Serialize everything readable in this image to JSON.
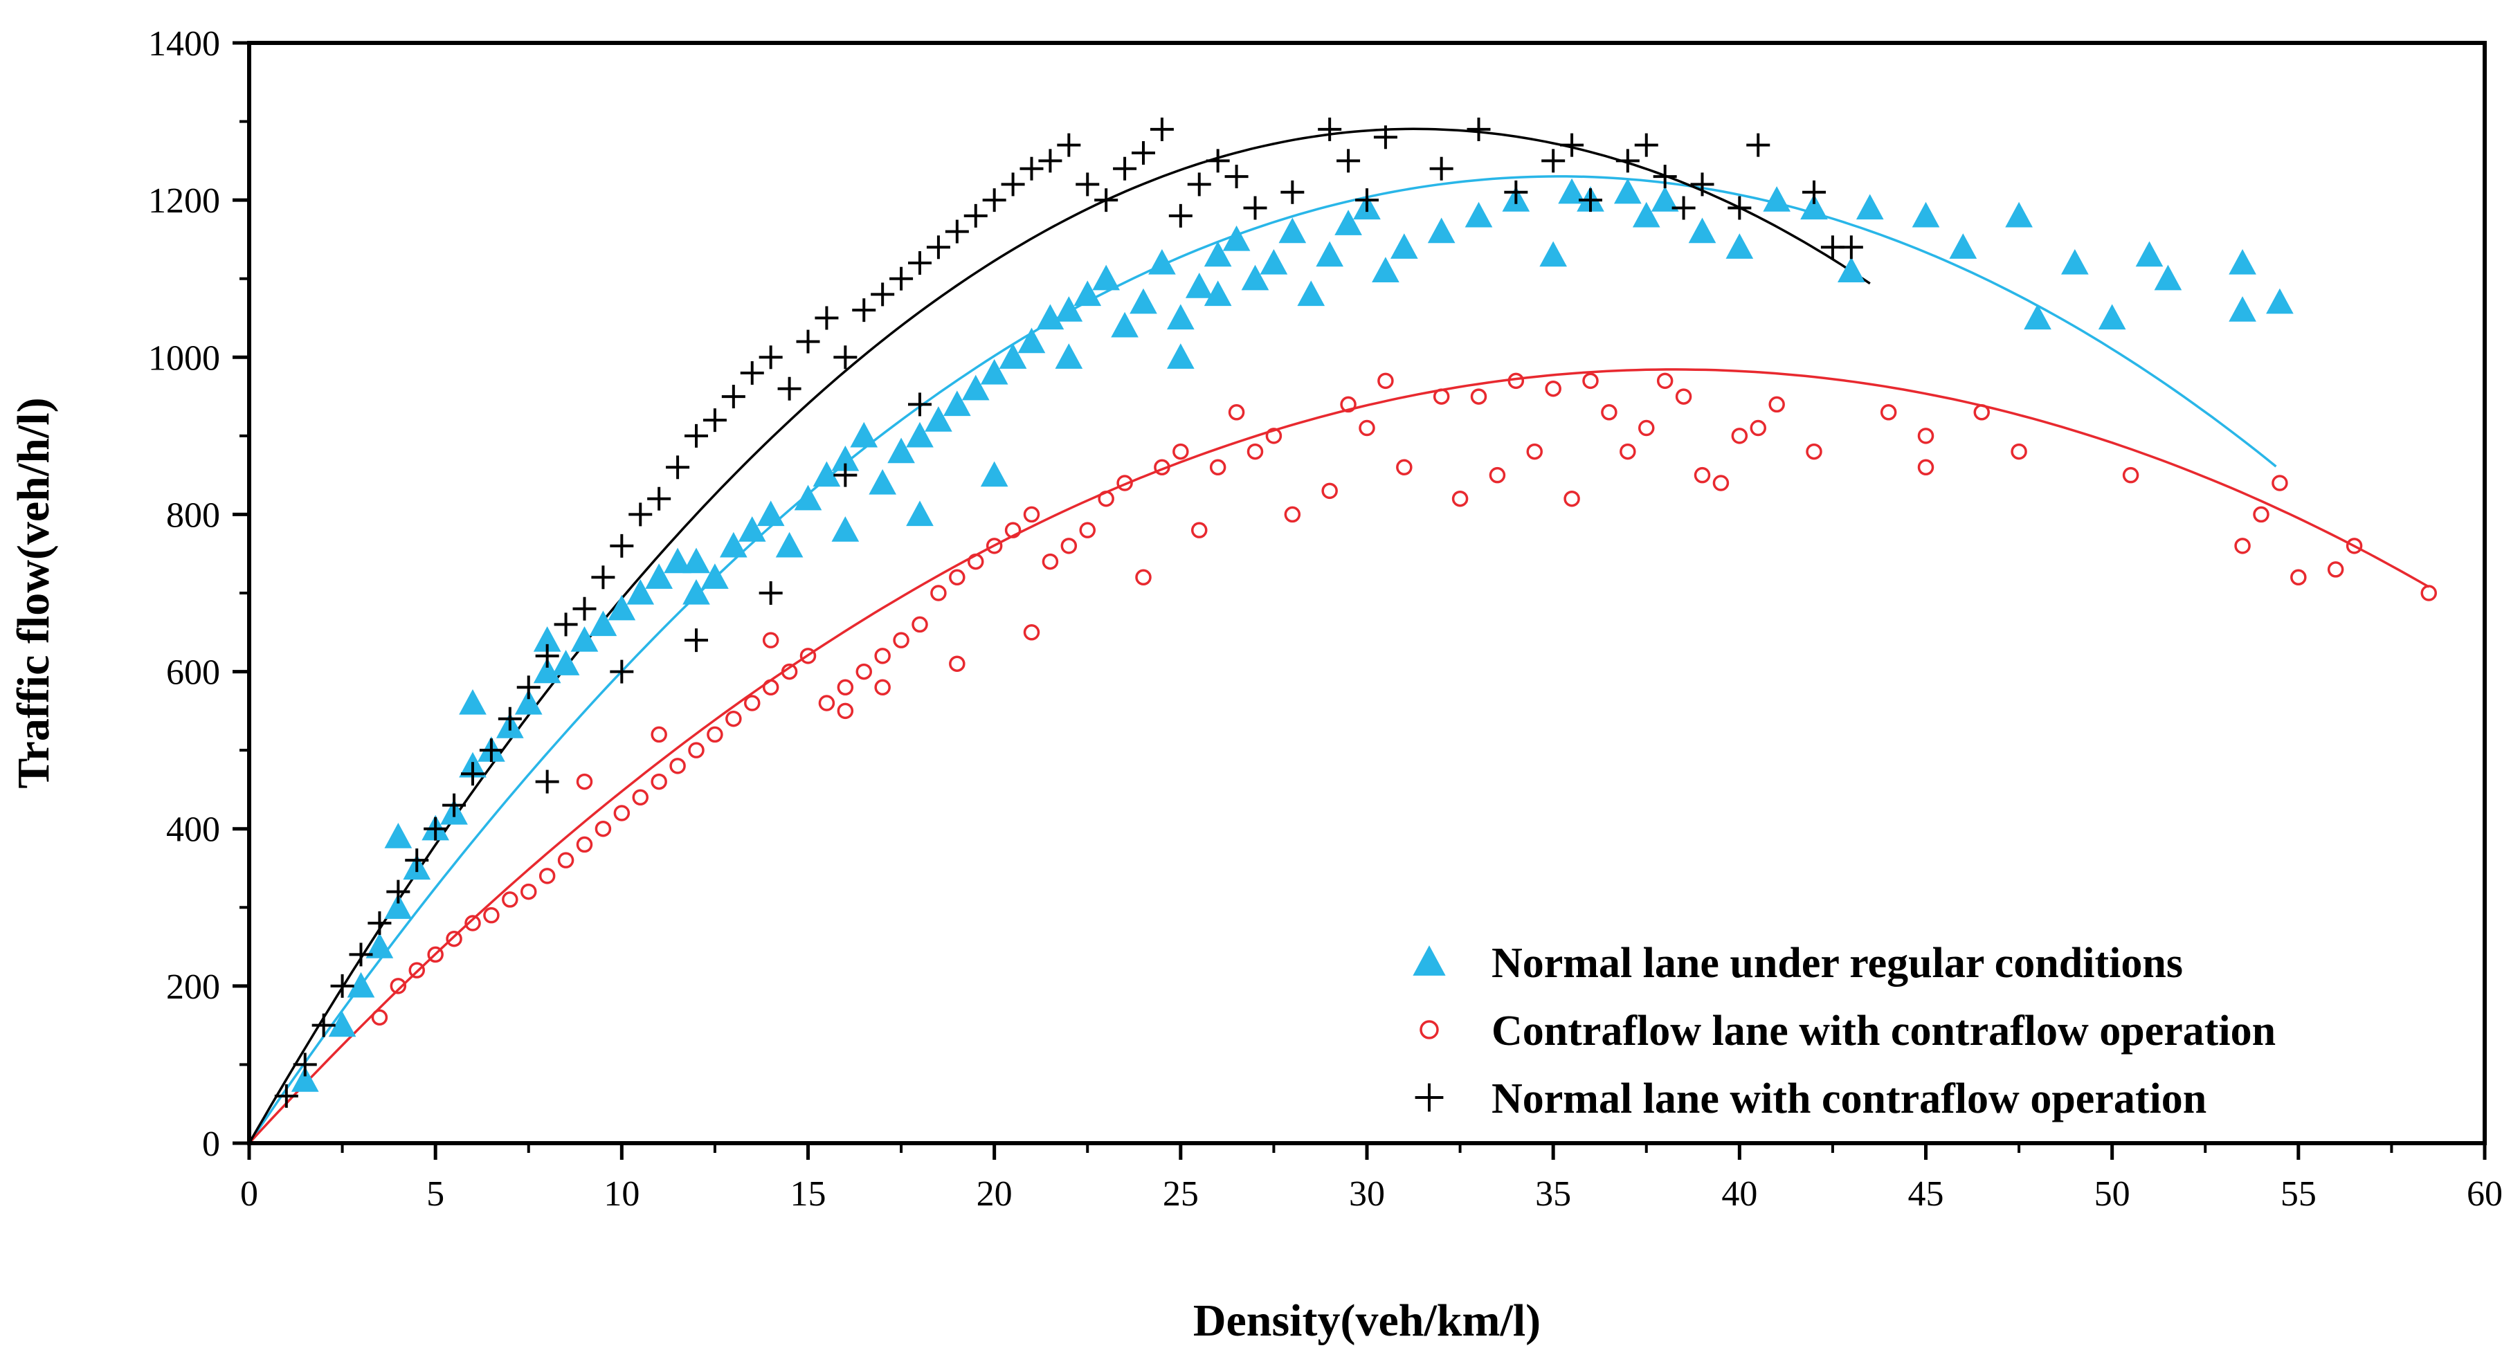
{
  "chart_data": {
    "type": "scatter",
    "title": "",
    "xlabel": "Density(veh/km/l)",
    "ylabel": "Traffic flow(veh/h/l)",
    "xlim": [
      0,
      60
    ],
    "ylim": [
      0,
      1400
    ],
    "xticks": [
      0,
      5,
      10,
      15,
      20,
      25,
      30,
      35,
      40,
      45,
      50,
      55,
      60
    ],
    "yticks": [
      0,
      200,
      400,
      600,
      800,
      1000,
      1200,
      1400
    ],
    "legend_position": "bottom-right",
    "series": [
      {
        "name": "Normal lane under regular conditions",
        "marker": "triangle",
        "color": "#29b6e8",
        "fit": {
          "type": "quadratic",
          "a": -0.9958,
          "b": 70.0,
          "c": 0,
          "x_range": [
            0,
            54.4
          ]
        },
        "points": [
          [
            1.5,
            80
          ],
          [
            2.5,
            150
          ],
          [
            3,
            200
          ],
          [
            3.5,
            250
          ],
          [
            4,
            300
          ],
          [
            4.5,
            350
          ],
          [
            5,
            400
          ],
          [
            5.5,
            420
          ],
          [
            6,
            480
          ],
          [
            6.5,
            500
          ],
          [
            7,
            530
          ],
          [
            7.5,
            560
          ],
          [
            8,
            600
          ],
          [
            8.5,
            610
          ],
          [
            9,
            640
          ],
          [
            9.5,
            660
          ],
          [
            10,
            680
          ],
          [
            10.5,
            700
          ],
          [
            11,
            720
          ],
          [
            11.5,
            740
          ],
          [
            12,
            700
          ],
          [
            12.5,
            720
          ],
          [
            13,
            760
          ],
          [
            13.5,
            780
          ],
          [
            14,
            800
          ],
          [
            14.5,
            760
          ],
          [
            15,
            820
          ],
          [
            15.5,
            850
          ],
          [
            16,
            870
          ],
          [
            16.5,
            900
          ],
          [
            17,
            840
          ],
          [
            17.5,
            880
          ],
          [
            18,
            900
          ],
          [
            18.5,
            920
          ],
          [
            19,
            940
          ],
          [
            19.5,
            960
          ],
          [
            20,
            980
          ],
          [
            20.5,
            1000
          ],
          [
            21,
            1020
          ],
          [
            21.5,
            1050
          ],
          [
            22,
            1060
          ],
          [
            22.5,
            1080
          ],
          [
            23,
            1100
          ],
          [
            23.5,
            1040
          ],
          [
            24,
            1070
          ],
          [
            24.5,
            1120
          ],
          [
            25,
            1050
          ],
          [
            25.5,
            1090
          ],
          [
            26,
            1130
          ],
          [
            26.5,
            1150
          ],
          [
            27,
            1100
          ],
          [
            27.5,
            1120
          ],
          [
            28,
            1160
          ],
          [
            28.5,
            1080
          ],
          [
            29,
            1130
          ],
          [
            29.5,
            1170
          ],
          [
            30,
            1190
          ],
          [
            30.5,
            1110
          ],
          [
            31,
            1140
          ],
          [
            32,
            1160
          ],
          [
            33,
            1180
          ],
          [
            34,
            1200
          ],
          [
            35,
            1130
          ],
          [
            35.5,
            1210
          ],
          [
            36,
            1200
          ],
          [
            37,
            1210
          ],
          [
            37.5,
            1180
          ],
          [
            38,
            1200
          ],
          [
            39,
            1160
          ],
          [
            40,
            1140
          ],
          [
            41,
            1200
          ],
          [
            42,
            1190
          ],
          [
            43,
            1110
          ],
          [
            43.5,
            1190
          ],
          [
            45,
            1180
          ],
          [
            46,
            1140
          ],
          [
            47.5,
            1180
          ],
          [
            48,
            1050
          ],
          [
            49,
            1120
          ],
          [
            50,
            1050
          ],
          [
            51,
            1130
          ],
          [
            51.5,
            1100
          ],
          [
            53.5,
            1120
          ],
          [
            53.5,
            1060
          ],
          [
            54.5,
            1070
          ],
          [
            4,
            390
          ],
          [
            6,
            560
          ],
          [
            8,
            640
          ],
          [
            12,
            740
          ],
          [
            16,
            780
          ],
          [
            18,
            800
          ],
          [
            20,
            850
          ],
          [
            22,
            1000
          ],
          [
            25,
            1000
          ],
          [
            26,
            1080
          ]
        ]
      },
      {
        "name": "Contraflow lane with contraflow operation",
        "marker": "circle",
        "color": "#e8292f",
        "fit": {
          "type": "quadratic",
          "a": -0.6735,
          "b": 51.5,
          "c": 0,
          "x_range": [
            0,
            58.5
          ]
        },
        "points": [
          [
            3.5,
            160
          ],
          [
            4,
            200
          ],
          [
            4.5,
            220
          ],
          [
            5,
            240
          ],
          [
            5.5,
            260
          ],
          [
            6,
            280
          ],
          [
            6.5,
            290
          ],
          [
            7,
            310
          ],
          [
            7.5,
            320
          ],
          [
            8,
            340
          ],
          [
            8.5,
            360
          ],
          [
            9,
            380
          ],
          [
            9.5,
            400
          ],
          [
            10,
            420
          ],
          [
            10.5,
            440
          ],
          [
            11,
            460
          ],
          [
            11.5,
            480
          ],
          [
            12,
            500
          ],
          [
            12.5,
            520
          ],
          [
            13,
            540
          ],
          [
            13.5,
            560
          ],
          [
            14,
            580
          ],
          [
            14.5,
            600
          ],
          [
            15,
            620
          ],
          [
            15.5,
            560
          ],
          [
            16,
            580
          ],
          [
            16.5,
            600
          ],
          [
            17,
            620
          ],
          [
            17.5,
            640
          ],
          [
            18,
            660
          ],
          [
            18.5,
            700
          ],
          [
            19,
            720
          ],
          [
            19.5,
            740
          ],
          [
            20,
            760
          ],
          [
            20.5,
            780
          ],
          [
            21,
            800
          ],
          [
            21.5,
            740
          ],
          [
            22,
            760
          ],
          [
            22.5,
            780
          ],
          [
            23,
            820
          ],
          [
            23.5,
            840
          ],
          [
            24,
            720
          ],
          [
            24.5,
            860
          ],
          [
            25,
            880
          ],
          [
            25.5,
            780
          ],
          [
            26,
            860
          ],
          [
            26.5,
            930
          ],
          [
            27,
            880
          ],
          [
            27.5,
            900
          ],
          [
            28,
            800
          ],
          [
            29,
            830
          ],
          [
            29.5,
            940
          ],
          [
            30,
            910
          ],
          [
            30.5,
            970
          ],
          [
            31,
            860
          ],
          [
            32,
            950
          ],
          [
            32.5,
            820
          ],
          [
            33,
            950
          ],
          [
            33.5,
            850
          ],
          [
            34,
            970
          ],
          [
            34.5,
            880
          ],
          [
            35,
            960
          ],
          [
            35.5,
            820
          ],
          [
            36,
            970
          ],
          [
            36.5,
            930
          ],
          [
            37,
            880
          ],
          [
            37.5,
            910
          ],
          [
            38,
            970
          ],
          [
            38.5,
            950
          ],
          [
            39,
            850
          ],
          [
            39.5,
            840
          ],
          [
            40,
            900
          ],
          [
            40.5,
            910
          ],
          [
            41,
            940
          ],
          [
            42,
            880
          ],
          [
            44,
            930
          ],
          [
            45,
            900
          ],
          [
            45,
            860
          ],
          [
            46.5,
            930
          ],
          [
            47.5,
            880
          ],
          [
            50.5,
            850
          ],
          [
            53.5,
            760
          ],
          [
            54,
            800
          ],
          [
            54.5,
            840
          ],
          [
            55,
            720
          ],
          [
            56,
            730
          ],
          [
            56.5,
            760
          ],
          [
            58.5,
            700
          ],
          [
            9,
            460
          ],
          [
            11,
            520
          ],
          [
            14,
            640
          ],
          [
            17,
            580
          ],
          [
            19,
            610
          ],
          [
            21,
            650
          ],
          [
            16,
            550
          ]
        ]
      },
      {
        "name": "Normal lane with contraflow operation",
        "marker": "plus",
        "color": "#000000",
        "fit": {
          "type": "quadratic",
          "a": -1.3185,
          "b": 82.5,
          "c": 0,
          "x_range": [
            0,
            43.5
          ]
        },
        "points": [
          [
            1,
            60
          ],
          [
            1.5,
            100
          ],
          [
            2,
            150
          ],
          [
            2.5,
            200
          ],
          [
            3,
            240
          ],
          [
            3.5,
            280
          ],
          [
            4,
            320
          ],
          [
            4.5,
            360
          ],
          [
            5,
            400
          ],
          [
            5.5,
            430
          ],
          [
            6,
            470
          ],
          [
            6.5,
            500
          ],
          [
            7,
            540
          ],
          [
            7.5,
            580
          ],
          [
            8,
            620
          ],
          [
            8.5,
            660
          ],
          [
            9,
            680
          ],
          [
            9.5,
            720
          ],
          [
            10,
            760
          ],
          [
            10.5,
            800
          ],
          [
            11,
            820
          ],
          [
            11.5,
            860
          ],
          [
            12,
            900
          ],
          [
            12.5,
            920
          ],
          [
            13,
            950
          ],
          [
            13.5,
            980
          ],
          [
            14,
            1000
          ],
          [
            14.5,
            960
          ],
          [
            15,
            1020
          ],
          [
            15.5,
            1050
          ],
          [
            16,
            1000
          ],
          [
            16.5,
            1060
          ],
          [
            17,
            1080
          ],
          [
            17.5,
            1100
          ],
          [
            18,
            1120
          ],
          [
            18.5,
            1140
          ],
          [
            19,
            1160
          ],
          [
            19.5,
            1180
          ],
          [
            20,
            1200
          ],
          [
            20.5,
            1220
          ],
          [
            21,
            1240
          ],
          [
            21.5,
            1250
          ],
          [
            22,
            1270
          ],
          [
            22.5,
            1220
          ],
          [
            23,
            1200
          ],
          [
            23.5,
            1240
          ],
          [
            24,
            1260
          ],
          [
            24.5,
            1290
          ],
          [
            25,
            1180
          ],
          [
            25.5,
            1220
          ],
          [
            26,
            1250
          ],
          [
            26.5,
            1230
          ],
          [
            27,
            1190
          ],
          [
            28,
            1210
          ],
          [
            29,
            1290
          ],
          [
            29.5,
            1250
          ],
          [
            30,
            1200
          ],
          [
            30.5,
            1280
          ],
          [
            32,
            1240
          ],
          [
            33,
            1290
          ],
          [
            34,
            1210
          ],
          [
            35,
            1250
          ],
          [
            35.5,
            1270
          ],
          [
            36,
            1200
          ],
          [
            37,
            1250
          ],
          [
            37.5,
            1270
          ],
          [
            38,
            1230
          ],
          [
            38.5,
            1190
          ],
          [
            39,
            1220
          ],
          [
            40,
            1190
          ],
          [
            40.5,
            1270
          ],
          [
            42,
            1210
          ],
          [
            42.5,
            1140
          ],
          [
            43,
            1140
          ],
          [
            8,
            460
          ],
          [
            10,
            600
          ],
          [
            12,
            640
          ],
          [
            14,
            700
          ],
          [
            16,
            850
          ],
          [
            18,
            940
          ]
        ]
      }
    ]
  }
}
